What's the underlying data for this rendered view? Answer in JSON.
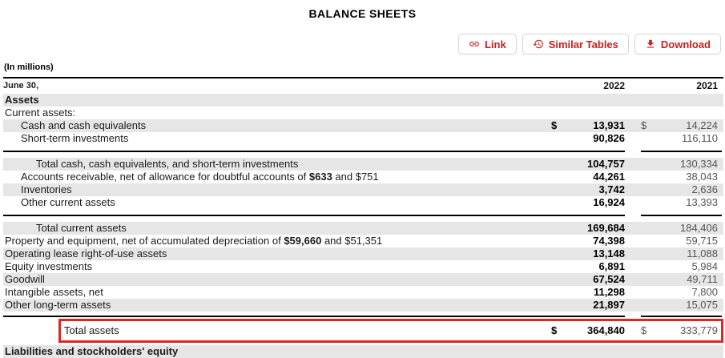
{
  "page": {
    "title": "BALANCE SHEETS",
    "units_label": "(In millions)"
  },
  "toolbar": {
    "link_label": "Link",
    "similar_tables_label": "Similar Tables",
    "download_label": "Download"
  },
  "colors": {
    "accent_red": "#c5221f",
    "highlight_border_red": "#e12620",
    "row_shade_gray": "#e6e6e6"
  },
  "table": {
    "header": {
      "label": "June 30,",
      "col_2022": "2022",
      "col_2021": "2021"
    },
    "rows": [
      {
        "type": "data",
        "indent": 0,
        "shade": true,
        "bold": true,
        "label_pre": "Assets",
        "label_bold": "",
        "label_post": "",
        "d1_dollar": "",
        "v2022": "",
        "d2_dollar": "",
        "v2021": ""
      },
      {
        "type": "data",
        "indent": 0,
        "shade": false,
        "bold": false,
        "label_pre": "Current assets:",
        "label_bold": "",
        "label_post": "",
        "d1_dollar": "",
        "v2022": "",
        "d2_dollar": "",
        "v2021": ""
      },
      {
        "type": "data",
        "indent": 1,
        "shade": true,
        "bold": false,
        "label_pre": "Cash and cash equivalents",
        "label_bold": "",
        "label_post": "",
        "d1_dollar": "$",
        "v2022": "13,931",
        "d2_dollar": "$",
        "v2021": "14,224"
      },
      {
        "type": "data",
        "indent": 1,
        "shade": false,
        "bold": false,
        "label_pre": "Short-term investments",
        "label_bold": "",
        "label_post": "",
        "d1_dollar": "",
        "v2022": "90,826",
        "d2_dollar": "",
        "v2021": "116,110"
      },
      {
        "type": "sep"
      },
      {
        "type": "data",
        "indent": 2,
        "shade": true,
        "bold": false,
        "label_pre": "Total cash, cash equivalents, and short-term investments",
        "label_bold": "",
        "label_post": "",
        "d1_dollar": "",
        "v2022": "104,757",
        "d2_dollar": "",
        "v2021": "130,334"
      },
      {
        "type": "data",
        "indent": 1,
        "shade": false,
        "bold": false,
        "label_pre": "Accounts receivable, net of allowance for doubtful accounts of ",
        "label_bold": "$633",
        "label_post": " and $751",
        "d1_dollar": "",
        "v2022": "44,261",
        "d2_dollar": "",
        "v2021": "38,043"
      },
      {
        "type": "data",
        "indent": 1,
        "shade": true,
        "bold": false,
        "label_pre": "Inventories",
        "label_bold": "",
        "label_post": "",
        "d1_dollar": "",
        "v2022": "3,742",
        "d2_dollar": "",
        "v2021": "2,636"
      },
      {
        "type": "data",
        "indent": 1,
        "shade": false,
        "bold": false,
        "label_pre": "Other current assets",
        "label_bold": "",
        "label_post": "",
        "d1_dollar": "",
        "v2022": "16,924",
        "d2_dollar": "",
        "v2021": "13,393"
      },
      {
        "type": "sep"
      },
      {
        "type": "data",
        "indent": 2,
        "shade": true,
        "bold": false,
        "label_pre": "Total current assets",
        "label_bold": "",
        "label_post": "",
        "d1_dollar": "",
        "v2022": "169,684",
        "d2_dollar": "",
        "v2021": "184,406"
      },
      {
        "type": "data",
        "indent": 0,
        "shade": false,
        "bold": false,
        "label_pre": "Property and equipment, net of accumulated depreciation of ",
        "label_bold": "$59,660",
        "label_post": " and $51,351",
        "d1_dollar": "",
        "v2022": "74,398",
        "d2_dollar": "",
        "v2021": "59,715"
      },
      {
        "type": "data",
        "indent": 0,
        "shade": true,
        "bold": false,
        "label_pre": "Operating lease right-of-use assets",
        "label_bold": "",
        "label_post": "",
        "d1_dollar": "",
        "v2022": "13,148",
        "d2_dollar": "",
        "v2021": "11,088"
      },
      {
        "type": "data",
        "indent": 0,
        "shade": false,
        "bold": false,
        "label_pre": "Equity investments",
        "label_bold": "",
        "label_post": "",
        "d1_dollar": "",
        "v2022": "6,891",
        "d2_dollar": "",
        "v2021": "5,984"
      },
      {
        "type": "data",
        "indent": 0,
        "shade": true,
        "bold": false,
        "label_pre": "Goodwill",
        "label_bold": "",
        "label_post": "",
        "d1_dollar": "",
        "v2022": "67,524",
        "d2_dollar": "",
        "v2021": "49,711"
      },
      {
        "type": "data",
        "indent": 0,
        "shade": false,
        "bold": false,
        "label_pre": "Intangible assets, net",
        "label_bold": "",
        "label_post": "",
        "d1_dollar": "",
        "v2022": "11,298",
        "d2_dollar": "",
        "v2021": "7,800"
      },
      {
        "type": "data",
        "indent": 0,
        "shade": true,
        "bold": false,
        "label_pre": "Other long-term assets",
        "label_bold": "",
        "label_post": "",
        "d1_dollar": "",
        "v2022": "21,897",
        "d2_dollar": "",
        "v2021": "15,075"
      },
      {
        "type": "sep",
        "tight": true
      }
    ],
    "total_assets": {
      "label": "Total assets",
      "d1_dollar": "$",
      "v2022": "364,840",
      "d2_dollar": "$",
      "v2021": "333,779"
    },
    "next_section_label": "Liabilities and stockholders' equity"
  }
}
